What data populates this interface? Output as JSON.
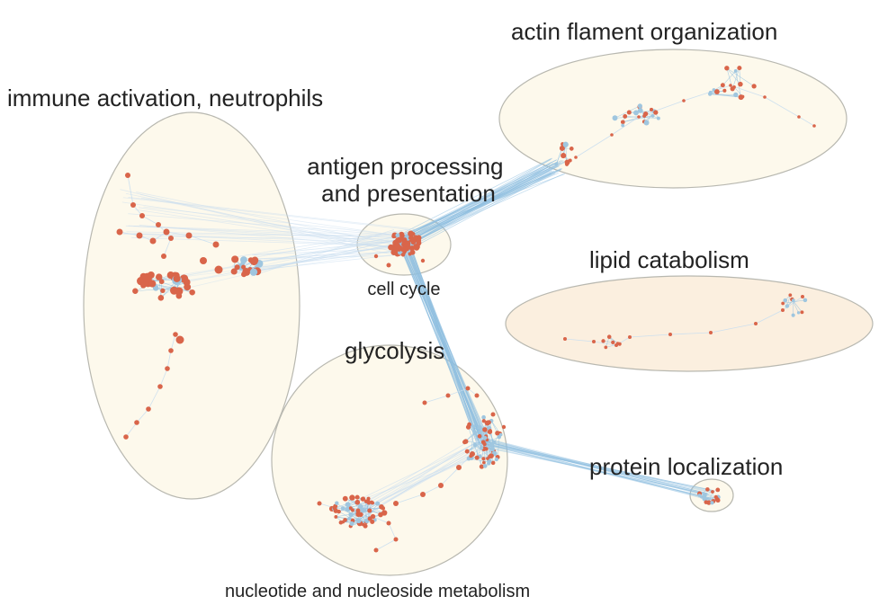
{
  "clusters": [
    {
      "id": "immune",
      "label": "immune activation, neutrophils",
      "fill": "#fdf9ec"
    },
    {
      "id": "actin",
      "label": "actin flament organization",
      "fill": "#fdf9ec"
    },
    {
      "id": "antigen",
      "label": "antigen processing\nand presentation",
      "fill": "#fdf9ec"
    },
    {
      "id": "cellcycle",
      "label": "cell cycle",
      "fill": "#fdf9ec"
    },
    {
      "id": "lipid",
      "label": "lipid catabolism",
      "fill": "#fbefdf"
    },
    {
      "id": "glycolysis",
      "label": "glycolysis",
      "fill": "#fdf9ec"
    },
    {
      "id": "nucleotide",
      "label": "nucleotide and nucleoside metabolism",
      "fill": "#fdf9ec"
    },
    {
      "id": "protein",
      "label": "protein localization",
      "fill": "#fdf9ec"
    }
  ],
  "colors": {
    "node_orange": "#d9654a",
    "node_blue": "#9fc6df",
    "edge_blue": "#8fbfe0",
    "edge_light": "#c9def0",
    "ellipse_stroke": "#b8b8b0"
  }
}
